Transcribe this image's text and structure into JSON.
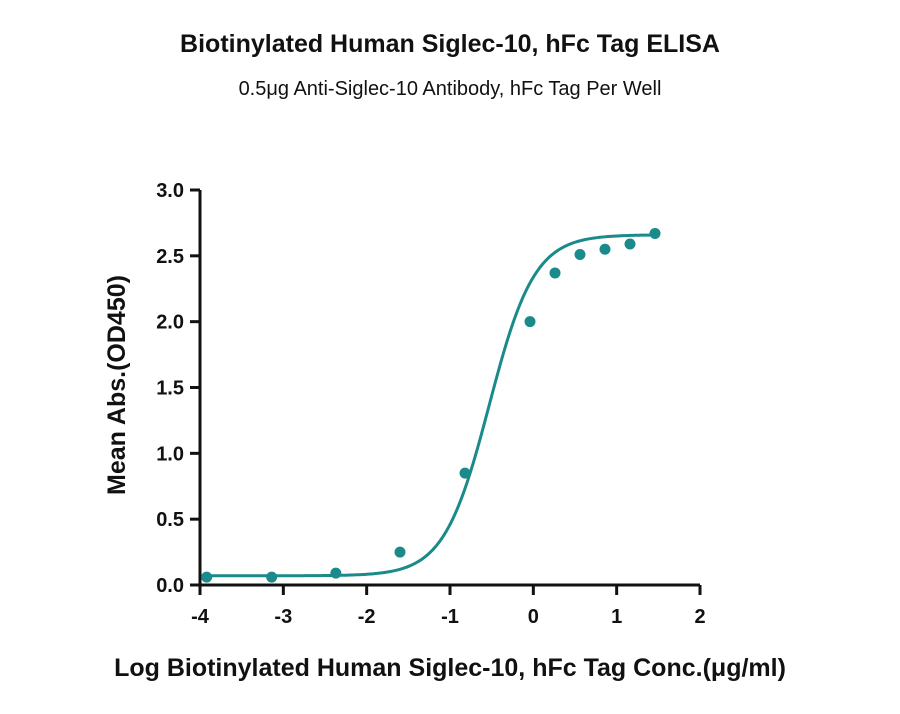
{
  "chart_data": {
    "type": "scatter",
    "title": "Biotinylated Human Siglec-10, hFc Tag ELISA",
    "subtitle": "0.5μg Anti-Siglec-10 Antibody, hFc Tag Per Well",
    "xlabel": "Log Biotinylated Human Siglec-10, hFc Tag Conc.(μg/ml)",
    "ylabel": "Mean Abs.(OD450)",
    "xlim": [
      -4,
      2
    ],
    "ylim": [
      0,
      3.0
    ],
    "x_ticks": [
      "-4",
      "-3",
      "-2",
      "-1",
      "0",
      "1",
      "2"
    ],
    "y_ticks": [
      "0.0",
      "0.5",
      "1.0",
      "1.5",
      "2.0",
      "2.5",
      "3.0"
    ],
    "grid": false,
    "color": "#1a8a8a",
    "series": [
      {
        "x": [
          -3.92,
          -3.14,
          -2.37,
          -1.6,
          -0.82,
          -0.04,
          0.26,
          0.56,
          0.86,
          1.16,
          1.46
        ],
        "y": [
          0.06,
          0.06,
          0.09,
          0.25,
          0.85,
          2.0,
          2.37,
          2.51,
          2.55,
          2.59,
          2.67
        ]
      }
    ],
    "fit_curve": {
      "model": "4PL",
      "bottom": 0.07,
      "top": 2.66,
      "log_ec50": -0.53,
      "hill_slope": 1.6
    }
  }
}
